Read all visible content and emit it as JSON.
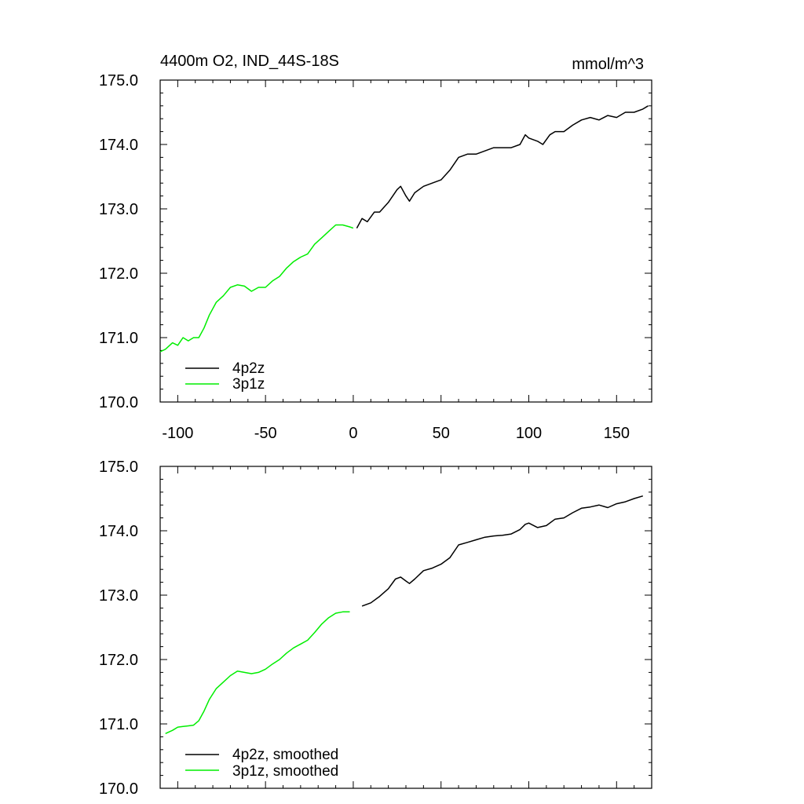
{
  "chart_data": [
    {
      "type": "line",
      "title": "4400m O2, IND_44S-18S",
      "units": "mmol/m^3",
      "xlim": [
        -110,
        170
      ],
      "ylim": [
        170,
        175
      ],
      "xticks": [
        "-100",
        "-50",
        "0",
        "50",
        "100",
        "150"
      ],
      "yticks": [
        "170.0",
        "171.0",
        "172.0",
        "173.0",
        "174.0",
        "175.0"
      ],
      "legend_position": "bottom-left",
      "series": [
        {
          "name": "4p2z",
          "color": "#000000",
          "x": [
            2,
            5,
            8,
            12,
            15,
            20,
            25,
            27,
            30,
            32,
            35,
            40,
            45,
            50,
            55,
            60,
            65,
            70,
            75,
            80,
            85,
            90,
            95,
            98,
            100,
            105,
            108,
            112,
            115,
            120,
            125,
            130,
            135,
            140,
            145,
            150,
            155,
            160,
            165,
            168
          ],
          "y": [
            172.7,
            172.85,
            172.8,
            172.95,
            172.95,
            173.1,
            173.3,
            173.35,
            173.2,
            173.12,
            173.25,
            173.35,
            173.4,
            173.45,
            173.6,
            173.8,
            173.85,
            173.85,
            173.9,
            173.95,
            173.95,
            173.95,
            174.0,
            174.15,
            174.1,
            174.05,
            174.0,
            174.15,
            174.2,
            174.2,
            174.3,
            174.38,
            174.42,
            174.38,
            174.45,
            174.42,
            174.5,
            174.5,
            174.55,
            174.6
          ]
        },
        {
          "name": "3p1z",
          "color": "#00ee00",
          "x": [
            -110,
            -107,
            -103,
            -100,
            -97,
            -94,
            -91,
            -88,
            -85,
            -82,
            -78,
            -74,
            -70,
            -66,
            -62,
            -58,
            -54,
            -50,
            -46,
            -42,
            -38,
            -34,
            -30,
            -26,
            -22,
            -18,
            -14,
            -10,
            -6,
            -2,
            0
          ],
          "y": [
            170.78,
            170.82,
            170.92,
            170.88,
            171.0,
            170.95,
            171.0,
            171.0,
            171.15,
            171.35,
            171.55,
            171.65,
            171.78,
            171.82,
            171.8,
            171.72,
            171.78,
            171.78,
            171.88,
            171.95,
            172.08,
            172.18,
            172.25,
            172.3,
            172.45,
            172.55,
            172.65,
            172.75,
            172.75,
            172.72,
            172.7
          ]
        }
      ]
    },
    {
      "type": "line",
      "xlim": [
        -110,
        170
      ],
      "ylim": [
        170,
        175
      ],
      "yticks": [
        "170.0",
        "171.0",
        "172.0",
        "173.0",
        "174.0",
        "175.0"
      ],
      "legend_position": "bottom-left",
      "series": [
        {
          "name": "4p2z, smoothed",
          "color": "#000000",
          "x": [
            5,
            10,
            15,
            20,
            24,
            27,
            30,
            32,
            35,
            40,
            45,
            50,
            55,
            60,
            65,
            70,
            75,
            80,
            85,
            90,
            95,
            98,
            100,
            105,
            110,
            115,
            120,
            125,
            130,
            135,
            140,
            145,
            150,
            155,
            160,
            165
          ],
          "y": [
            172.83,
            172.88,
            172.98,
            173.1,
            173.25,
            173.28,
            173.22,
            173.18,
            173.25,
            173.38,
            173.42,
            173.48,
            173.58,
            173.78,
            173.82,
            173.86,
            173.9,
            173.92,
            173.93,
            173.95,
            174.02,
            174.1,
            174.12,
            174.05,
            174.08,
            174.18,
            174.2,
            174.28,
            174.35,
            174.37,
            174.4,
            174.36,
            174.42,
            174.45,
            174.5,
            174.54
          ]
        },
        {
          "name": "3p1z, smoothed",
          "color": "#00ee00",
          "x": [
            -107,
            -103,
            -100,
            -97,
            -94,
            -91,
            -88,
            -85,
            -82,
            -78,
            -74,
            -70,
            -66,
            -62,
            -58,
            -54,
            -50,
            -46,
            -42,
            -38,
            -34,
            -30,
            -26,
            -22,
            -18,
            -14,
            -10,
            -6,
            -2
          ],
          "y": [
            170.85,
            170.9,
            170.95,
            170.96,
            170.97,
            170.98,
            171.05,
            171.2,
            171.38,
            171.55,
            171.65,
            171.75,
            171.82,
            171.8,
            171.78,
            171.8,
            171.85,
            171.93,
            172.0,
            172.1,
            172.18,
            172.24,
            172.3,
            172.42,
            172.55,
            172.65,
            172.72,
            172.74,
            172.74
          ]
        }
      ]
    }
  ]
}
